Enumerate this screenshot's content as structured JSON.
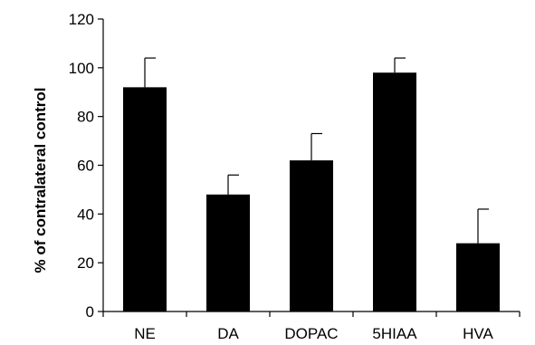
{
  "chart_data": {
    "type": "bar",
    "title": "",
    "xlabel": "",
    "ylabel": "% of contralateral control",
    "categories": [
      "NE",
      "DA",
      "DOPAC",
      "5HIAA",
      "HVA"
    ],
    "values": [
      92,
      48,
      62,
      98,
      28
    ],
    "error_upper": [
      12,
      8,
      11,
      6,
      14
    ],
    "ylim": [
      0,
      120
    ],
    "yticks": [
      "0",
      "20",
      "40",
      "60",
      "80",
      "100",
      "120"
    ],
    "grid": false,
    "legend": "none",
    "colors": {
      "bar": "#000000",
      "axis": "#000000"
    }
  }
}
